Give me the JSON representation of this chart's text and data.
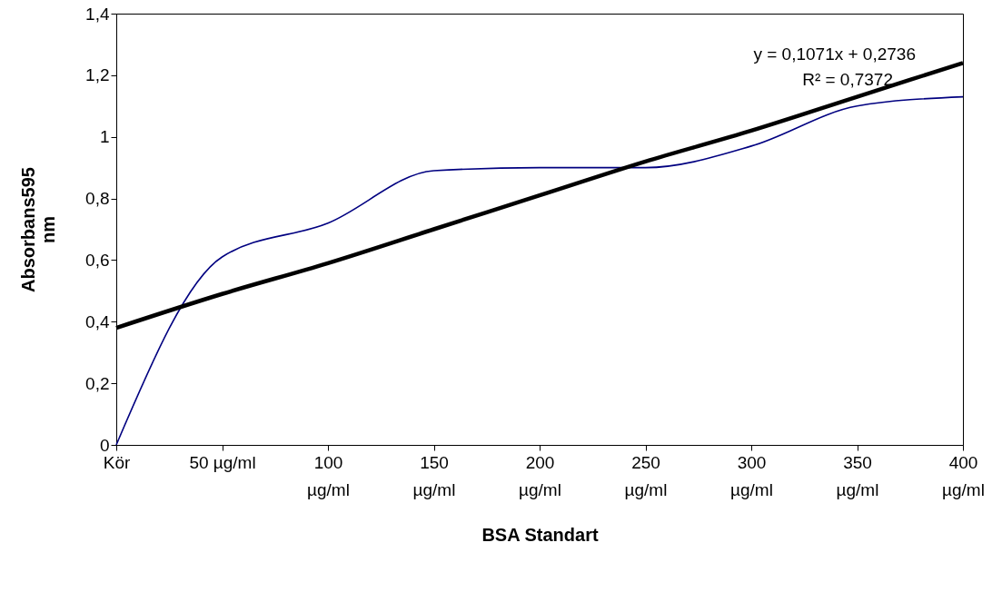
{
  "chart_data": {
    "type": "line",
    "xlabel": "BSA Standart",
    "ylabel": "Absorbans595 nm",
    "categories": [
      "Kör",
      "50 µg/ml",
      "100 µg/ml",
      "150 µg/ml",
      "200 µg/ml",
      "250 µg/ml",
      "300 µg/ml",
      "350 µg/ml",
      "400 µg/ml"
    ],
    "series": [
      {
        "color": "#000080",
        "values": [
          0,
          0.61,
          0.72,
          0.89,
          0.9,
          0.9,
          0.97,
          1.1,
          1.13
        ]
      },
      {
        "color": "#000000",
        "values": [
          0.38,
          0.49,
          0.59,
          0.7,
          0.81,
          0.92,
          1.02,
          1.13,
          1.24
        ]
      }
    ],
    "ylim": [
      0,
      1.4
    ],
    "yticks": [
      0,
      {
        "value": 0.2,
        "label": "0,2"
      },
      {
        "value": 0.4,
        "label": "0,4"
      },
      {
        "value": 0.6,
        "label": "0,6"
      },
      {
        "value": 0.8,
        "label": "0,8"
      },
      1,
      {
        "value": 1.2,
        "label": "1,2"
      },
      {
        "value": 1.4,
        "label": "1,4"
      }
    ],
    "annotations": [
      "y = 0,1071x + 0,2736",
      "R² = 0,7372"
    ],
    "grid": false,
    "line_style": "solid"
  }
}
